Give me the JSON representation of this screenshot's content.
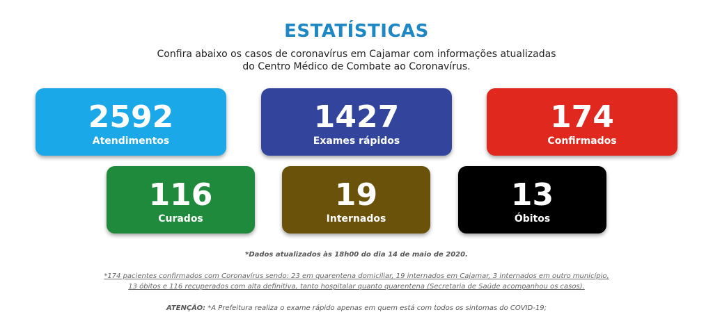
{
  "header": {
    "title": "ESTATÍSTICAS",
    "subtitle_line1": "Confira abaixo os casos de coronavírus em Cajamar com informações atualizadas",
    "subtitle_line2": "do Centro Médico de Combate ao Coronavírus."
  },
  "stats": [
    {
      "value": "2592",
      "label": "Atendimentos",
      "color": "#1ba8e8"
    },
    {
      "value": "1427",
      "label": "Exames rápidos",
      "color": "#33449c"
    },
    {
      "value": "174",
      "label": "Confirmados",
      "color": "#e0281f"
    },
    {
      "value": "116",
      "label": "Curados",
      "color": "#1f8a3b"
    },
    {
      "value": "19",
      "label": "Internados",
      "color": "#6a520a"
    },
    {
      "value": "13",
      "label": "Óbitos",
      "color": "#000000"
    }
  ],
  "notes": {
    "updated": "*Dados atualizados às 18h00 do dia 14 de maio de 2020.",
    "footnote_line1": "*174 pacientes confirmados com Coronavírus sendo: 23 em quarentena domiciliar, 19 internados em Cajamar, 3 internados em outro município,",
    "footnote_line2": "13 óbitos e 116 recuperados com alta definitiva, tanto hospitalar quanto quarentena (Secretaria de Saúde acompanhou os casos).",
    "attention_label": "ATENÇÃO:",
    "attention_text": " *A Prefeitura realiza o exame rápido apenas em quem está com todos os sintomas do COVID-19;"
  }
}
